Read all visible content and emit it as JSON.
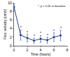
{
  "chart_data": {
    "type": "line",
    "x_label": "Time (hours)",
    "y_label": "Flow velocity (cm/s)",
    "annotation": "*, p < 0.05 vs baseline",
    "x": [
      0,
      1,
      2,
      3,
      4,
      5,
      6,
      7
    ],
    "values": [
      9,
      2.5,
      1.8,
      1.2,
      1.6,
      1.3,
      2,
      2.4
    ],
    "errors": [
      0.8,
      1.2,
      0.9,
      0.6,
      0.8,
      0.7,
      1,
      1.2
    ],
    "significance_marks": [
      null,
      "*",
      "*",
      "*",
      "*",
      "*",
      "*",
      "*"
    ],
    "color": "#1f3f8f",
    "marker": "circle",
    "xlim": [
      0,
      8
    ],
    "xticks": [
      0,
      2,
      4,
      6,
      8
    ],
    "ylim": [
      0,
      10
    ],
    "yticks": [
      0,
      2,
      4,
      6,
      8,
      10
    ],
    "grid": false
  }
}
